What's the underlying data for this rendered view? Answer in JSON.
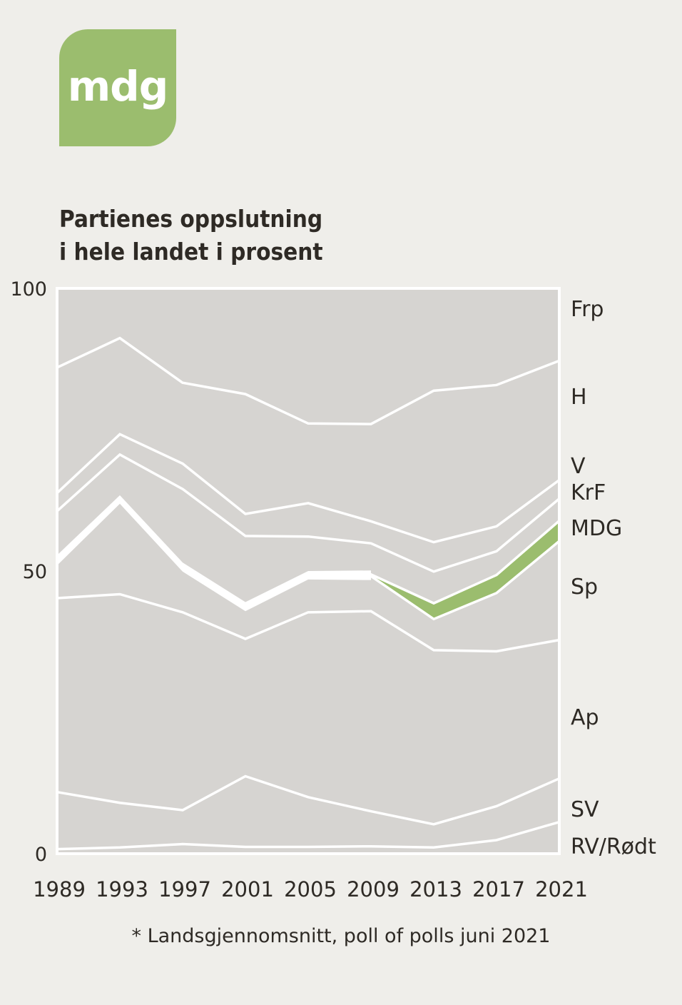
{
  "logo": {
    "text": "mdg",
    "color": "#9bbd6e"
  },
  "title_lines": [
    "Partienes oppslutning",
    "i hele landet i prosent"
  ],
  "footnote": "* Landsgjennomsnitt, poll of polls juni 2021",
  "chart_data": {
    "type": "area",
    "stacked": true,
    "x": [
      "1989",
      "1993",
      "1997",
      "2001",
      "2005",
      "2009",
      "2013",
      "2017",
      "2021"
    ],
    "ylim": [
      0,
      100
    ],
    "yticks": [
      0,
      50,
      100
    ],
    "colors": {
      "plot_background": "#d6d4d1",
      "lines": "#ffffff",
      "highlight": "#9bbd6e"
    },
    "series": [
      {
        "name": "RV/Rødt",
        "values": [
          0.8,
          1.1,
          1.7,
          1.2,
          1.2,
          1.3,
          1.1,
          2.4,
          5.6
        ]
      },
      {
        "name": "SV",
        "values": [
          10.1,
          7.9,
          6.0,
          12.5,
          8.8,
          6.2,
          4.1,
          6.0,
          7.7
        ]
      },
      {
        "name": "Ap",
        "values": [
          34.3,
          36.9,
          35.0,
          24.3,
          32.7,
          35.4,
          30.8,
          27.4,
          24.5
        ]
      },
      {
        "name": "Sp",
        "values": [
          6.5,
          16.7,
          7.9,
          5.6,
          6.5,
          6.2,
          5.5,
          10.3,
          17.5
        ]
      },
      {
        "name": "MDG",
        "values": [
          0.4,
          0.1,
          0.2,
          0.2,
          0.1,
          0.3,
          2.8,
          3.2,
          3.6
        ]
      },
      {
        "name": "KrF",
        "values": [
          8.5,
          7.9,
          13.7,
          12.4,
          6.8,
          5.5,
          5.6,
          4.2,
          3.9
        ]
      },
      {
        "name": "V",
        "values": [
          3.2,
          3.6,
          4.5,
          3.9,
          5.9,
          3.9,
          5.2,
          4.4,
          3.3
        ]
      },
      {
        "name": "H",
        "values": [
          22.2,
          17.0,
          14.3,
          21.2,
          14.1,
          17.2,
          26.8,
          25.0,
          21.1
        ]
      },
      {
        "name": "Frp",
        "values": [
          13.0,
          6.3,
          15.3,
          14.6,
          22.1,
          22.9,
          16.3,
          15.2,
          9.8
        ]
      }
    ],
    "right_labels": [
      "Frp",
      "H",
      "V",
      "KrF",
      "MDG",
      "Sp",
      "Ap",
      "SV",
      "RV/Rødt"
    ]
  }
}
